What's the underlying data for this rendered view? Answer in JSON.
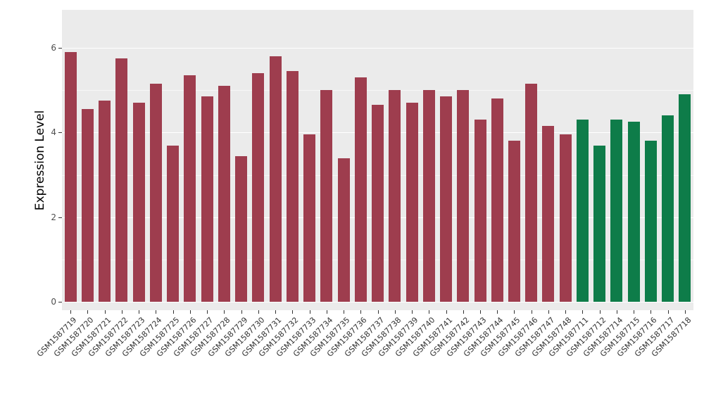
{
  "chart_data": {
    "type": "bar",
    "title": "",
    "xlabel": "",
    "ylabel": "Expression Level",
    "ylim": [
      0,
      6
    ],
    "yticks": [
      0,
      2,
      4,
      6
    ],
    "minor_ticks": [
      1,
      3,
      5
    ],
    "panel_range": [
      -0.2,
      6.9
    ],
    "panel_background": "#ebebeb",
    "gridline_color": "#ffffff",
    "legend": "none",
    "series": [
      {
        "name": "group-1-maroon",
        "color": "#9E3D4E",
        "categories": [
          "GSM1587719",
          "GSM1587720",
          "GSM1587721",
          "GSM1587722",
          "GSM1587723",
          "GSM1587724",
          "GSM1587725",
          "GSM1587726",
          "GSM1587727",
          "GSM1587728",
          "GSM1587729",
          "GSM1587730",
          "GSM1587731",
          "GSM1587732",
          "GSM1587733",
          "GSM1587734",
          "GSM1587735",
          "GSM1587736",
          "GSM1587737",
          "GSM1587738",
          "GSM1587739",
          "GSM1587740",
          "GSM1587741",
          "GSM1587742",
          "GSM1587743",
          "GSM1587744",
          "GSM1587745",
          "GSM1587746",
          "GSM1587747",
          "GSM1587748"
        ],
        "values": [
          5.9,
          4.55,
          4.75,
          5.75,
          4.7,
          5.15,
          3.7,
          5.35,
          4.85,
          5.1,
          3.45,
          5.4,
          5.8,
          5.45,
          3.95,
          5.0,
          3.4,
          5.3,
          4.65,
          5.0,
          4.7,
          5.0,
          4.85,
          5.0,
          4.3,
          4.8,
          3.8,
          5.15,
          4.15,
          3.95
        ]
      },
      {
        "name": "group-2-green",
        "color": "#0E7C49",
        "categories": [
          "GSM1587711",
          "GSM1587712",
          "GSM1587714",
          "GSM1587715",
          "GSM1587716",
          "GSM1587717",
          "GSM1587718"
        ],
        "values": [
          4.3,
          3.7,
          4.3,
          4.25,
          3.8,
          4.4,
          4.9
        ]
      }
    ]
  }
}
